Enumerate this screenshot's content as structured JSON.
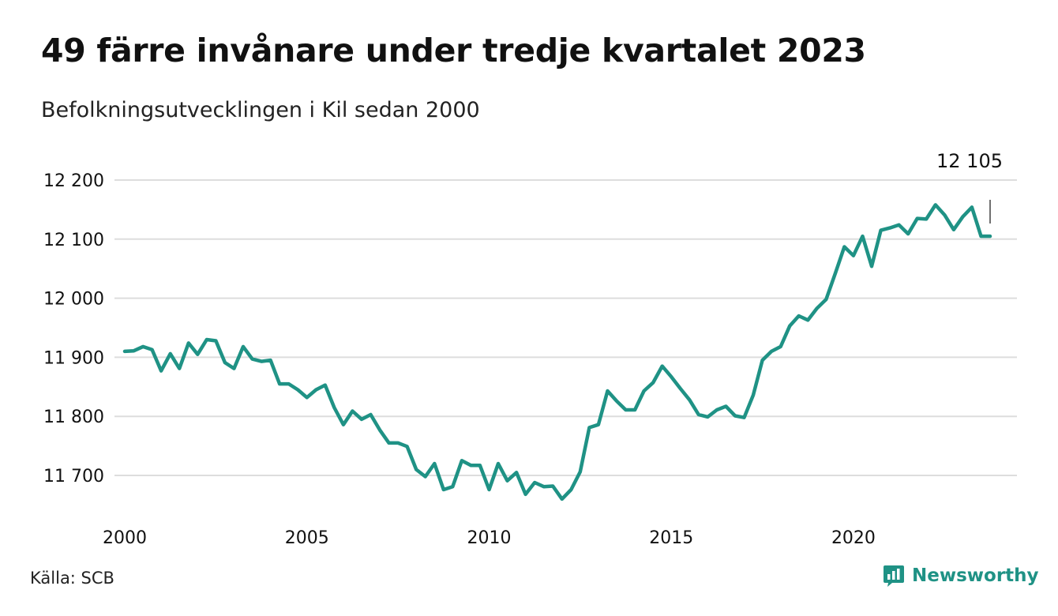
{
  "header": {
    "title": "49 färre invånare under tredje kvartalet 2023",
    "subtitle": "Befolkningsutvecklingen i Kil sedan 2000"
  },
  "footer": {
    "source": "Källa: SCB",
    "brand": "Newsworthy"
  },
  "colors": {
    "line": "#1f9285",
    "grid": "#dddddd",
    "text": "#111111"
  },
  "chart_data": {
    "type": "line",
    "title": "49 färre invånare under tredje kvartalet 2023",
    "subtitle": "Befolkningsutvecklingen i Kil sedan 2000",
    "xlabel": "",
    "ylabel": "",
    "xlim": [
      2000,
      2023.75
    ],
    "ylim": [
      11650,
      12200
    ],
    "yticks": [
      11700,
      11800,
      11900,
      12000,
      12100,
      12200
    ],
    "ytick_labels": [
      "11 700",
      "11 800",
      "11 900",
      "12 000",
      "12 100",
      "12 200"
    ],
    "xticks": [
      2000,
      2005,
      2010,
      2015,
      2020
    ],
    "xtick_labels": [
      "2000",
      "2005",
      "2010",
      "2015",
      "2020"
    ],
    "grid": true,
    "annotation": {
      "x": 2023.75,
      "value": 12105,
      "label": "12 105"
    },
    "series": [
      {
        "x": [
          2000.0,
          2000.25,
          2000.5,
          2000.75,
          2001.0,
          2001.25,
          2001.5,
          2001.75,
          2002.0,
          2002.25,
          2002.5,
          2002.75,
          2003.0,
          2003.25,
          2003.5,
          2003.75,
          2004.0,
          2004.25,
          2004.5,
          2004.75,
          2005.0,
          2005.25,
          2005.5,
          2005.75,
          2006.0,
          2006.25,
          2006.5,
          2006.75,
          2007.0,
          2007.25,
          2007.5,
          2007.75,
          2008.0,
          2008.25,
          2008.5,
          2008.75,
          2009.0,
          2009.25,
          2009.5,
          2009.75,
          2010.0,
          2010.25,
          2010.5,
          2010.75,
          2011.0,
          2011.25,
          2011.5,
          2011.75,
          2012.0,
          2012.25,
          2012.5,
          2012.75,
          2013.0,
          2013.25,
          2013.5,
          2013.75,
          2014.0,
          2014.25,
          2014.5,
          2014.75,
          2015.0,
          2015.25,
          2015.5,
          2015.75,
          2016.0,
          2016.25,
          2016.5,
          2016.75,
          2017.0,
          2017.25,
          2017.5,
          2017.75,
          2018.0,
          2018.25,
          2018.5,
          2018.75,
          2019.0,
          2019.25,
          2019.5,
          2019.75,
          2020.0,
          2020.25,
          2020.5,
          2020.75,
          2021.0,
          2021.25,
          2021.5,
          2021.75,
          2022.0,
          2022.25,
          2022.5,
          2022.75,
          2023.0,
          2023.25,
          2023.5,
          2023.75
        ],
        "values": [
          11910,
          11911,
          11918,
          11913,
          11877,
          11906,
          11881,
          11924,
          11905,
          11930,
          11928,
          11891,
          11881,
          11918,
          11897,
          11893,
          11895,
          11855,
          11855,
          11845,
          11832,
          11845,
          11853,
          11815,
          11786,
          11809,
          11795,
          11803,
          11777,
          11755,
          11755,
          11749,
          11710,
          11698,
          11720,
          11676,
          11681,
          11725,
          11717,
          11717,
          11676,
          11720,
          11691,
          11705,
          11668,
          11688,
          11681,
          11682,
          11660,
          11676,
          11706,
          11781,
          11786,
          11843,
          11826,
          11811,
          11811,
          11843,
          11857,
          11885,
          11867,
          11847,
          11828,
          11803,
          11799,
          11811,
          11817,
          11801,
          11798,
          11836,
          11895,
          11910,
          11918,
          11953,
          11970,
          11963,
          11983,
          11998,
          12042,
          12087,
          12072,
          12105,
          12054,
          12115,
          12119,
          12124,
          12109,
          12135,
          12134,
          12158,
          12141,
          12116,
          12138,
          12154,
          12105,
          12105
        ]
      }
    ]
  }
}
